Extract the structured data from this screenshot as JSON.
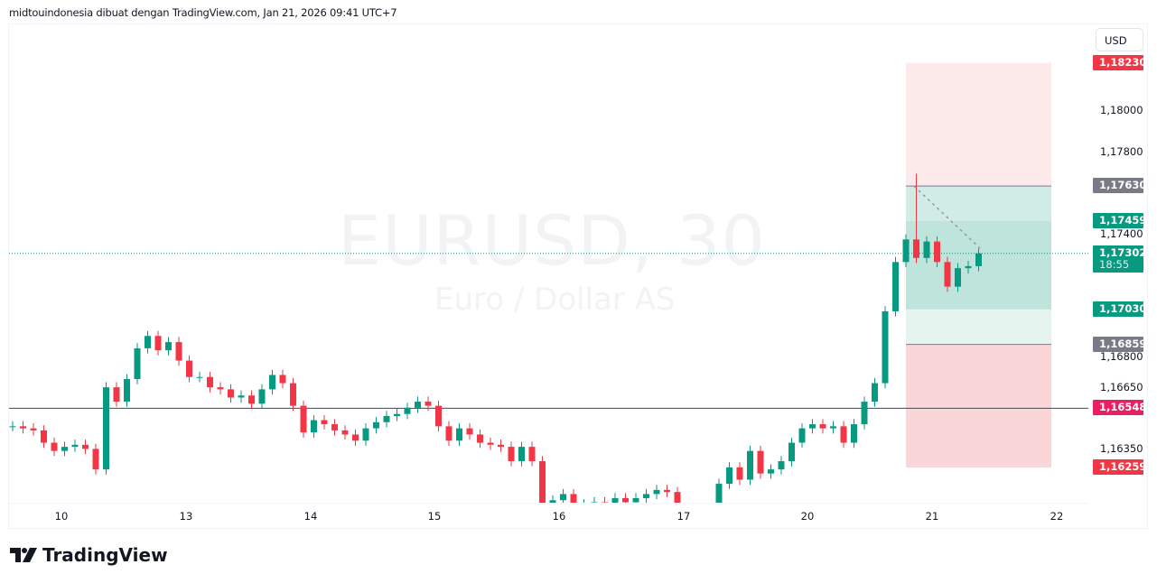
{
  "header": {
    "text": "midtouindonesia dibuat dengan TradingView.com, Jan 21, 2026 09:41 UTC+7"
  },
  "watermark": {
    "symbol": "EURUSD, 30",
    "description": "Euro / Dollar AS"
  },
  "currency_button": "USD",
  "logo": {
    "text": "TradingView"
  },
  "colors": {
    "up": "#089981",
    "down": "#f23645",
    "stop_zone": "#fdeaea",
    "target_zone": "#d1ece6",
    "grey_label": "#787b86",
    "line_label": "#e91e63"
  },
  "price_labels": [
    {
      "text": "1,18230",
      "price": 1.1823,
      "color": "#f23645"
    },
    {
      "text": "1,17630",
      "price": 1.1763,
      "color": "#787b86"
    },
    {
      "text": "1,17459",
      "price": 1.17459,
      "color": "#089981"
    },
    {
      "text": "1,17302",
      "price": 1.17302,
      "color": "#089981",
      "countdown": "18:55"
    },
    {
      "text": "1,17030",
      "price": 1.1703,
      "color": "#089981"
    },
    {
      "text": "1,16859",
      "price": 1.16859,
      "color": "#787b86"
    },
    {
      "text": "1,16548",
      "price": 1.16548,
      "color": "#e91e63"
    },
    {
      "text": "1,16259",
      "price": 1.16259,
      "color": "#f23645"
    }
  ],
  "chart_data": {
    "type": "candlestick",
    "x_ticks": [
      "10",
      "13",
      "14",
      "15",
      "16",
      "17",
      "20",
      "21",
      "22"
    ],
    "y_ticks": [
      {
        "text": "1,18000",
        "price": 1.18
      },
      {
        "text": "1,17800",
        "price": 1.178
      },
      {
        "text": "1,17400",
        "price": 1.174
      },
      {
        "text": "1,16800",
        "price": 1.168
      },
      {
        "text": "1,16650",
        "price": 1.1665
      },
      {
        "text": "1,16350",
        "price": 1.1635
      }
    ],
    "ylim": [
      1.1613,
      1.1844
    ],
    "closes": [
      1.1646,
      1.1645,
      1.1644,
      1.1638,
      1.1634,
      1.1636,
      1.1637,
      1.1635,
      1.1625,
      1.1665,
      1.1658,
      1.1669,
      1.1684,
      1.169,
      1.1683,
      1.1687,
      1.1678,
      1.167,
      1.167,
      1.1665,
      1.1664,
      1.166,
      1.1661,
      1.1657,
      1.1664,
      1.1671,
      1.1667,
      1.1656,
      1.1643,
      1.1649,
      1.1647,
      1.1644,
      1.1642,
      1.1639,
      1.1645,
      1.1648,
      1.1651,
      1.1652,
      1.1655,
      1.1658,
      1.1656,
      1.1646,
      1.1639,
      1.1645,
      1.1642,
      1.1638,
      1.1637,
      1.1636,
      1.1629,
      1.1636,
      1.1629,
      1.1607,
      1.161,
      1.1613,
      1.1607,
      1.1608,
      1.1609,
      1.1608,
      1.1611,
      1.1609,
      1.1611,
      1.1613,
      1.1615,
      1.1614,
      1.1605,
      1.1599,
      1.1596,
      1.1603,
      1.1618,
      1.1626,
      1.162,
      1.1634,
      1.1623,
      1.1625,
      1.1629,
      1.1638,
      1.1645,
      1.1647,
      1.1645,
      1.1646,
      1.1638,
      1.1647,
      1.1658,
      1.1667,
      1.1702,
      1.1726,
      1.1737,
      1.1728,
      1.1736,
      1.1726,
      1.1714,
      1.1723,
      1.1724,
      1.17302
    ],
    "high_overrides": [
      {
        "index": 87,
        "high": 1.1769
      }
    ],
    "last_price": 1.17302,
    "horizontal_line": 1.16548,
    "positions": [
      {
        "type": "short",
        "stop": 1.1823,
        "entry": 1.1763,
        "target": 1.16259
      },
      {
        "type": "long",
        "entry": 1.17459,
        "target": 1.1703
      }
    ]
  }
}
